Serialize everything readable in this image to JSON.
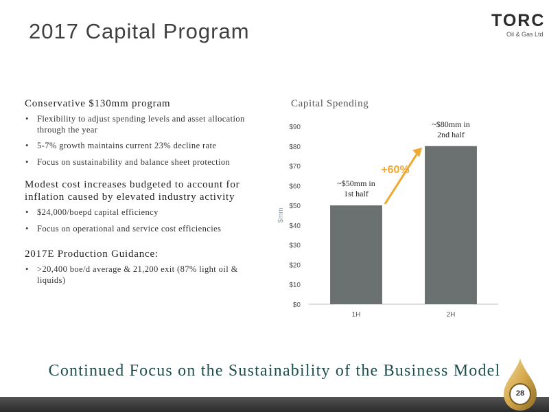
{
  "slide": {
    "title": "2017 Capital Program",
    "logo": {
      "name": "TORC",
      "subtitle": "Oil & Gas Ltd"
    },
    "page_number": "28",
    "footer": "Continued Focus on the Sustainability of the Business Model"
  },
  "left": {
    "sections": [
      {
        "heading": "Conservative $130mm program",
        "bullets": [
          "Flexibility to adjust spending levels and asset allocation through the year",
          "5-7% growth maintains current 23% decline rate",
          "Focus on sustainability and balance sheet protection"
        ]
      },
      {
        "heading": "Modest cost increases budgeted to account for inflation caused by elevated industry activity",
        "bullets": [
          "$24,000/boepd capital efficiency",
          "Focus on operational and service cost efficiencies"
        ]
      },
      {
        "heading": "2017E Production Guidance:",
        "bullets": [
          ">20,400 boe/d average & 21,200 exit (87% light oil & liquids)"
        ]
      }
    ]
  },
  "chart_data": {
    "type": "bar",
    "title": "Capital Spending",
    "ylabel": "$mm",
    "xlabel": "",
    "categories": [
      "1H",
      "2H"
    ],
    "values": [
      50,
      80
    ],
    "ylim": [
      0,
      90
    ],
    "yticks": [
      0,
      10,
      20,
      30,
      40,
      50,
      60,
      70,
      80,
      90
    ],
    "ytick_labels": [
      "$0",
      "$10",
      "$20",
      "$30",
      "$40",
      "$50",
      "$60",
      "$70",
      "$80",
      "$90"
    ],
    "bar_color": "#6b7070",
    "grid": false,
    "annotations": [
      {
        "lines": [
          "~$50mm in",
          "1st half"
        ],
        "target": "1H"
      },
      {
        "lines": [
          "~$80mm in",
          "2nd half"
        ],
        "target": "2H"
      },
      {
        "text": "+60%",
        "color": "#f0a830"
      }
    ]
  },
  "colors": {
    "accent": "#f0a830",
    "footer_text": "#1f4e4e",
    "bar": "#6b7070"
  }
}
